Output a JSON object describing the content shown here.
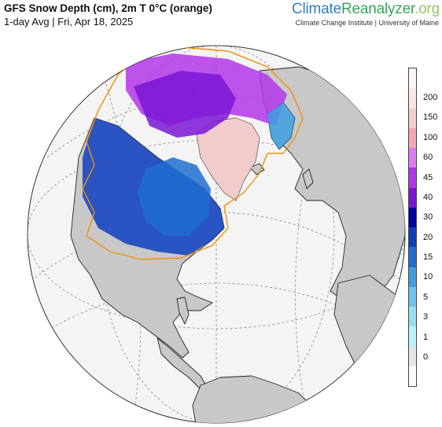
{
  "header": {
    "title": "GFS Snow Depth (cm), 2m T 0°C (orange)",
    "subtitle": "1-day Avg | Fri, Apr 18, 2025",
    "brand_part1": "Climate",
    "brand_part2": "Reanalyzer",
    "brand_part3": ".org",
    "brand_sub": "Climate Change Institute | University of Maine"
  },
  "legend": {
    "labels": [
      "0",
      "1",
      "3",
      "5",
      "10",
      "15",
      "20",
      "30",
      "40",
      "45",
      "60",
      "100",
      "150",
      "200"
    ],
    "colors": [
      "#ffffff",
      "#e5e5e5",
      "#b9f2fb",
      "#93dff5",
      "#6cc6ee",
      "#3d9fe0",
      "#1e6fd0",
      "#0d3fbf",
      "#0000a8",
      "#7b16d6",
      "#b336e8",
      "#e07cf2",
      "#f2a9b6",
      "#f7cdcd",
      "#fae6e6",
      "#fdf5f5"
    ]
  },
  "map": {
    "ocean_color": "#f4f4f4",
    "land_color": "#c8c8c8",
    "border_color": "#222222",
    "freezing_line_color": "#f0900a",
    "grid_color": "#888888"
  }
}
